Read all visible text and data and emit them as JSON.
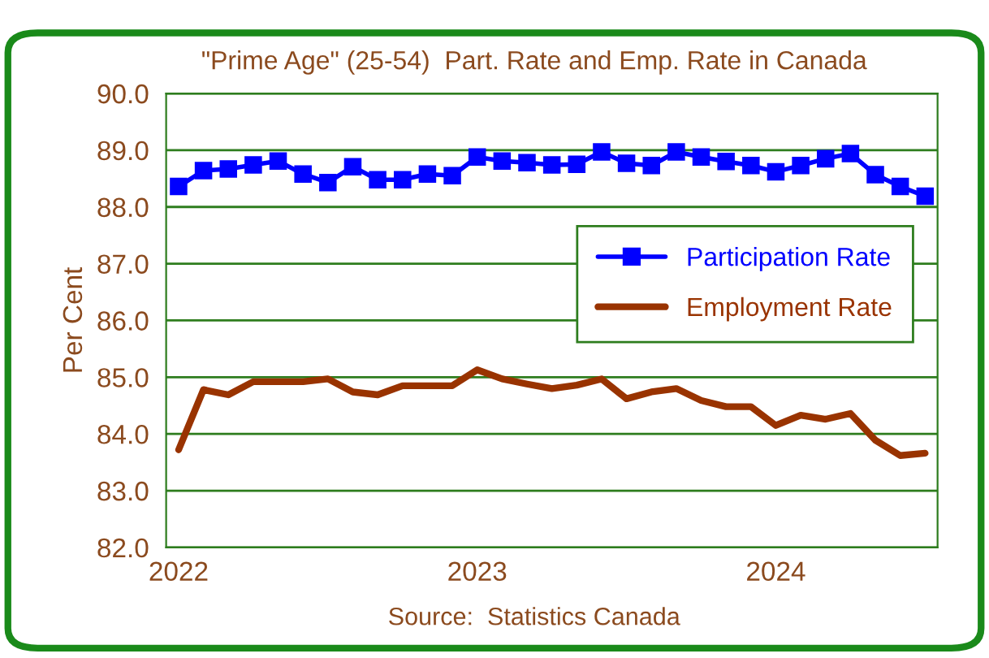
{
  "chart_data": {
    "type": "line",
    "title": "\"Prime Age\" (25-54)  Part. Rate and Emp. Rate in Canada",
    "ylabel": "Per Cent",
    "categories": [
      "2022",
      null,
      null,
      null,
      null,
      null,
      null,
      null,
      null,
      null,
      null,
      null,
      "2023",
      null,
      null,
      null,
      null,
      null,
      null,
      null,
      null,
      null,
      null,
      null,
      "2024",
      null,
      null,
      null,
      null,
      null,
      null
    ],
    "series": [
      {
        "name": "Participation Rate",
        "color": "#0000ff",
        "marker": "square",
        "values": [
          88.36,
          88.64,
          88.67,
          88.74,
          88.81,
          88.58,
          88.43,
          88.71,
          88.48,
          88.48,
          88.58,
          88.55,
          88.88,
          88.81,
          88.78,
          88.74,
          88.75,
          88.97,
          88.77,
          88.73,
          88.97,
          88.88,
          88.8,
          88.73,
          88.62,
          88.73,
          88.85,
          88.94,
          88.57,
          88.36,
          88.19
        ]
      },
      {
        "name": "Employment Rate",
        "color": "#993300",
        "marker": "none",
        "values": [
          83.72,
          84.78,
          84.69,
          84.92,
          84.92,
          84.92,
          84.97,
          84.74,
          84.69,
          84.85,
          84.85,
          84.85,
          85.13,
          84.97,
          84.88,
          84.8,
          84.86,
          84.97,
          84.62,
          84.74,
          84.8,
          84.59,
          84.48,
          84.48,
          84.15,
          84.33,
          84.26,
          84.36,
          83.89,
          83.62,
          83.66
        ]
      }
    ],
    "ylim": [
      82,
      90
    ],
    "yticks": [
      {
        "value": 82,
        "label": "82.0"
      },
      {
        "value": 83,
        "label": "83.0"
      },
      {
        "value": 84,
        "label": "84.0"
      },
      {
        "value": 85,
        "label": "85.0"
      },
      {
        "value": 86,
        "label": "86.0"
      },
      {
        "value": 87,
        "label": "87.0"
      },
      {
        "value": 88,
        "label": "88.0"
      },
      {
        "value": 89,
        "label": "89.0"
      },
      {
        "value": 90,
        "label": "90.0"
      }
    ],
    "grid": "y",
    "legend": "right",
    "line_style": "solid",
    "annotations": [
      "Source:  Statistics Canada"
    ]
  }
}
